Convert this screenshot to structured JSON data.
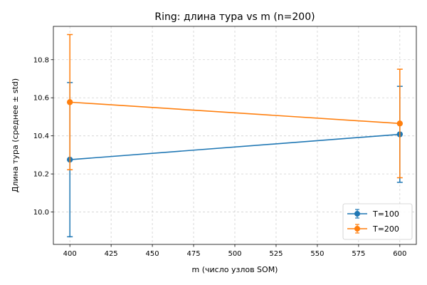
{
  "chart_data": {
    "type": "line",
    "title": "Ring: длина тура vs m (n=200)",
    "xlabel": "m (число узлов SOM)",
    "ylabel": "Длина тура (среднее ± std)",
    "xlim": [
      390,
      610
    ],
    "ylim": [
      9.83,
      10.975
    ],
    "x": [
      400,
      600
    ],
    "xticks": [
      400,
      425,
      450,
      475,
      500,
      525,
      550,
      575,
      600
    ],
    "xtick_labels": [
      "400",
      "425",
      "450",
      "475",
      "500",
      "525",
      "550",
      "575",
      "600"
    ],
    "yticks": [
      10.0,
      10.2,
      10.4,
      10.6,
      10.8
    ],
    "ytick_labels": [
      "10.0",
      "10.2",
      "10.4",
      "10.6",
      "10.8"
    ],
    "grid": true,
    "legend_position": "lower-right",
    "series": [
      {
        "name": "T=100",
        "color": "#1f77b4",
        "values": [
          10.275,
          10.408
        ],
        "std": [
          0.405,
          0.252
        ]
      },
      {
        "name": "T=200",
        "color": "#ff7f0e",
        "values": [
          10.577,
          10.465
        ],
        "std": [
          0.355,
          0.285
        ]
      }
    ]
  }
}
